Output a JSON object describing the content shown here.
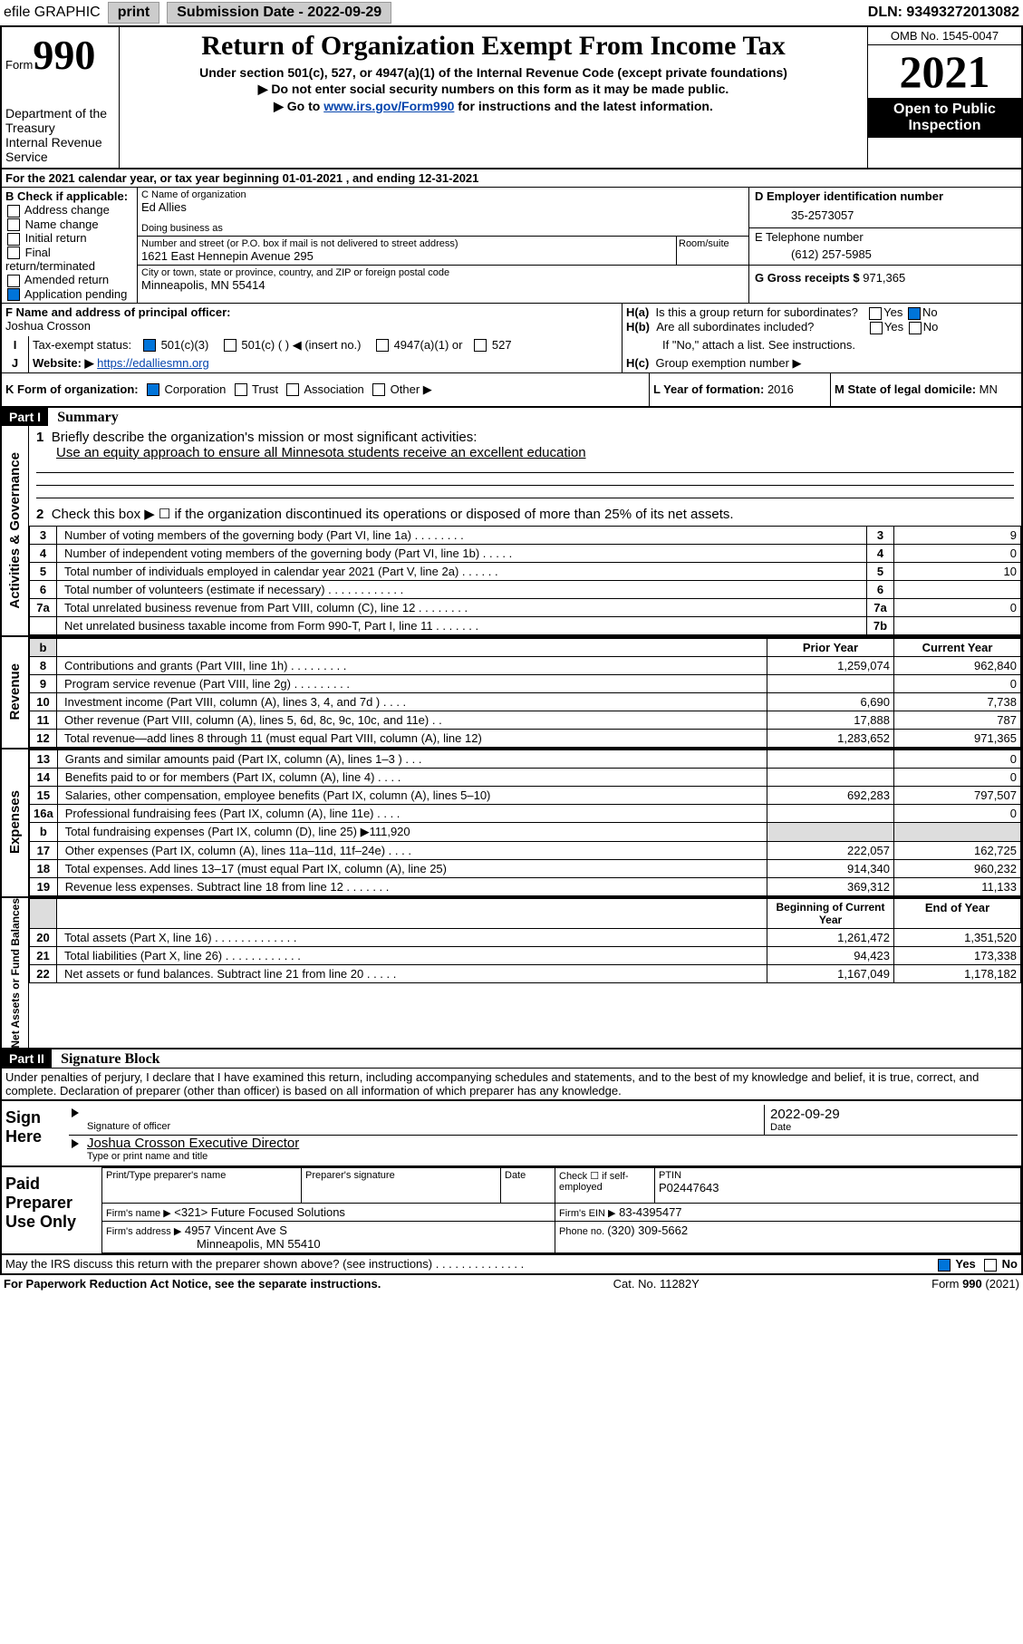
{
  "topbar": {
    "efile": "efile GRAPHIC",
    "print": "print",
    "subdate_label": "Submission Date - 2022-09-29",
    "dln": "DLN: 93493272013082"
  },
  "header": {
    "form_prefix": "Form",
    "form_num": "990",
    "dept": "Department of the Treasury",
    "irs": "Internal Revenue Service",
    "title": "Return of Organization Exempt From Income Tax",
    "subtitle": "Under section 501(c), 527, or 4947(a)(1) of the Internal Revenue Code (except private foundations)",
    "ssn_warn": "▶ Do not enter social security numbers on this form as it may be made public.",
    "goto_prefix": "▶ Go to ",
    "goto_link": "www.irs.gov/Form990",
    "goto_suffix": " for instructions and the latest information.",
    "omb": "OMB No. 1545-0047",
    "year": "2021",
    "inspect1": "Open to Public",
    "inspect2": "Inspection"
  },
  "lineA": "For the 2021 calendar year, or tax year beginning 01-01-2021      , and ending 12-31-2021",
  "boxB": {
    "label": "B Check if applicable:",
    "opts": [
      "Address change",
      "Name change",
      "Initial return",
      "Final return/terminated",
      "Amended return",
      "Application pending"
    ]
  },
  "boxC": {
    "label": "C Name of organization",
    "name": "Ed Allies",
    "dba_label": "Doing business as",
    "addr_label": "Number and street (or P.O. box if mail is not delivered to street address)",
    "suite": "Room/suite",
    "street": "1621 East Hennepin Avenue 295",
    "city_label": "City or town, state or province, country, and ZIP or foreign postal code",
    "city": "Minneapolis, MN  55414"
  },
  "boxD": {
    "label": "D Employer identification number",
    "value": "35-2573057"
  },
  "boxE": {
    "label": "E Telephone number",
    "value": "(612) 257-5985"
  },
  "boxG": {
    "label": "G Gross receipts $ ",
    "value": "971,365"
  },
  "boxF": {
    "label": "F Name and address of principal officer:",
    "name": "Joshua Crosson"
  },
  "boxH": {
    "a": "Is this a group return for subordinates?",
    "b": "Are all subordinates included?",
    "bnote": "If \"No,\" attach a list. See instructions.",
    "c": "Group exemption number ▶",
    "yes": "Yes",
    "no": "No"
  },
  "lineI": {
    "label": "Tax-exempt status:",
    "opts": [
      "501(c)(3)",
      "501(c) (    ) ◀ (insert no.)",
      "4947(a)(1) or",
      "527"
    ]
  },
  "lineJ": {
    "label": "Website: ▶",
    "value": "https://edalliesmn.org"
  },
  "lineK": {
    "label": "K Form of organization:",
    "opts": [
      "Corporation",
      "Trust",
      "Association",
      "Other ▶"
    ]
  },
  "lineL": {
    "label": "L Year of formation: ",
    "value": "2016"
  },
  "lineM": {
    "label": "M State of legal domicile: ",
    "value": "MN"
  },
  "part1": {
    "hdr": "Part I",
    "title": "Summary",
    "l1_label": "Briefly describe the organization's mission or most significant activities:",
    "l1_text": "Use an equity approach to ensure all Minnesota students receive an excellent education",
    "l2": "Check this box ▶ ☐  if the organization discontinued its operations or disposed of more than 25% of its net assets.",
    "rows_ag": [
      {
        "n": "3",
        "label": "Number of voting members of the governing body (Part VI, line 1a)   .    .    .    .    .    .    .    .",
        "box": "3",
        "val": "9"
      },
      {
        "n": "4",
        "label": "Number of independent voting members of the governing body (Part VI, line 1b)   .    .    .    .    .",
        "box": "4",
        "val": "0"
      },
      {
        "n": "5",
        "label": "Total number of individuals employed in calendar year 2021 (Part V, line 2a)   .    .    .    .    .    .",
        "box": "5",
        "val": "10"
      },
      {
        "n": "6",
        "label": "Total number of volunteers (estimate if necessary)   .    .    .    .    .    .    .    .    .    .    .    .",
        "box": "6",
        "val": ""
      },
      {
        "n": "7a",
        "label": "Total unrelated business revenue from Part VIII, column (C), line 12   .    .    .    .    .    .    .    .",
        "box": "7a",
        "val": "0"
      },
      {
        "n": "",
        "label": "Net unrelated business taxable income from Form 990-T, Part I, line 11   .    .    .    .    .    .    .",
        "box": "7b",
        "val": ""
      }
    ],
    "col_prior": "Prior Year",
    "col_current": "Current Year",
    "col_boy": "Beginning of Current Year",
    "col_eoy": "End of Year",
    "rev_rows": [
      {
        "n": "8",
        "label": "Contributions and grants (Part VIII, line 1h)   .    .    .    .    .    .    .    .    .",
        "p": "1,259,074",
        "c": "962,840"
      },
      {
        "n": "9",
        "label": "Program service revenue (Part VIII, line 2g)    .    .    .    .    .    .    .    .    .",
        "p": "",
        "c": "0"
      },
      {
        "n": "10",
        "label": "Investment income (Part VIII, column (A), lines 3, 4, and 7d )   .    .    .    .",
        "p": "6,690",
        "c": "7,738"
      },
      {
        "n": "11",
        "label": "Other revenue (Part VIII, column (A), lines 5, 6d, 8c, 9c, 10c, and 11e)   .    .",
        "p": "17,888",
        "c": "787"
      },
      {
        "n": "12",
        "label": "Total revenue—add lines 8 through 11 (must equal Part VIII, column (A), line 12)",
        "p": "1,283,652",
        "c": "971,365"
      }
    ],
    "exp_rows": [
      {
        "n": "13",
        "label": "Grants and similar amounts paid (Part IX, column (A), lines 1–3 )   .    .    .",
        "p": "",
        "c": "0"
      },
      {
        "n": "14",
        "label": "Benefits paid to or for members (Part IX, column (A), line 4)   .    .    .    .",
        "p": "",
        "c": "0"
      },
      {
        "n": "15",
        "label": "Salaries, other compensation, employee benefits (Part IX, column (A), lines 5–10)",
        "p": "692,283",
        "c": "797,507"
      },
      {
        "n": "16a",
        "label": "Professional fundraising fees (Part IX, column (A), line 11e)   .    .    .    .",
        "p": "",
        "c": "0"
      },
      {
        "n": "b",
        "label": "Total fundraising expenses (Part IX, column (D), line 25) ▶111,920",
        "p": "shaded",
        "c": "shaded"
      },
      {
        "n": "17",
        "label": "Other expenses (Part IX, column (A), lines 11a–11d, 11f–24e)   .    .    .    .",
        "p": "222,057",
        "c": "162,725"
      },
      {
        "n": "18",
        "label": "Total expenses. Add lines 13–17 (must equal Part IX, column (A), line 25)",
        "p": "914,340",
        "c": "960,232"
      },
      {
        "n": "19",
        "label": "Revenue less expenses. Subtract line 18 from line 12   .    .    .    .    .    .    .",
        "p": "369,312",
        "c": "11,133"
      }
    ],
    "na_rows": [
      {
        "n": "20",
        "label": "Total assets (Part X, line 16)   .    .    .    .    .    .    .    .    .    .    .    .    .",
        "p": "1,261,472",
        "c": "1,351,520"
      },
      {
        "n": "21",
        "label": "Total liabilities (Part X, line 26)   .    .    .    .    .    .    .    .    .    .    .    .",
        "p": "94,423",
        "c": "173,338"
      },
      {
        "n": "22",
        "label": "Net assets or fund balances. Subtract line 21 from line 20   .    .    .    .    .",
        "p": "1,167,049",
        "c": "1,178,182"
      }
    ]
  },
  "part2": {
    "hdr": "Part II",
    "title": "Signature Block",
    "perjury": "Under penalties of perjury, I declare that I have examined this return, including accompanying schedules and statements, and to the best of my knowledge and belief, it is true, correct, and complete. Declaration of preparer (other than officer) is based on all information of which preparer has any knowledge."
  },
  "sign": {
    "label": "Sign Here",
    "sig_label": "Signature of officer",
    "date": "2022-09-29",
    "date_label": "Date",
    "name": "Joshua Crosson  Executive Director",
    "name_label": "Type or print name and title"
  },
  "preparer": {
    "label": "Paid Preparer Use Only",
    "name_label": "Print/Type preparer's name",
    "sig_label": "Preparer's signature",
    "date_label": "Date",
    "check_label": "Check ☐ if self-employed",
    "ptin_label": "PTIN",
    "ptin": "P02447643",
    "firm_name_label": "Firm's name     ▶",
    "firm_name": "Future Focused Solutions",
    "ein_label": "Firm's EIN ▶",
    "ein": "83-4395477",
    "addr_label": "Firm's address ▶",
    "addr1": "4957 Vincent Ave S",
    "addr2": "Minneapolis, MN  55410",
    "phone_label": "Phone no. ",
    "phone": "(320) 309-5662"
  },
  "discuss": "May the IRS discuss this return with the preparer shown above? (see instructions)    .    .    .    .    .    .    .    .    .    .    .    .    .    .",
  "footer": {
    "pra": "For Paperwork Reduction Act Notice, see the separate instructions.",
    "cat": "Cat. No. 11282Y",
    "form": "Form 990 (2021)"
  },
  "side_labels": {
    "ag": "Activities & Governance",
    "rev": "Revenue",
    "exp": "Expenses",
    "na": "Net Assets or Fund Balances"
  }
}
